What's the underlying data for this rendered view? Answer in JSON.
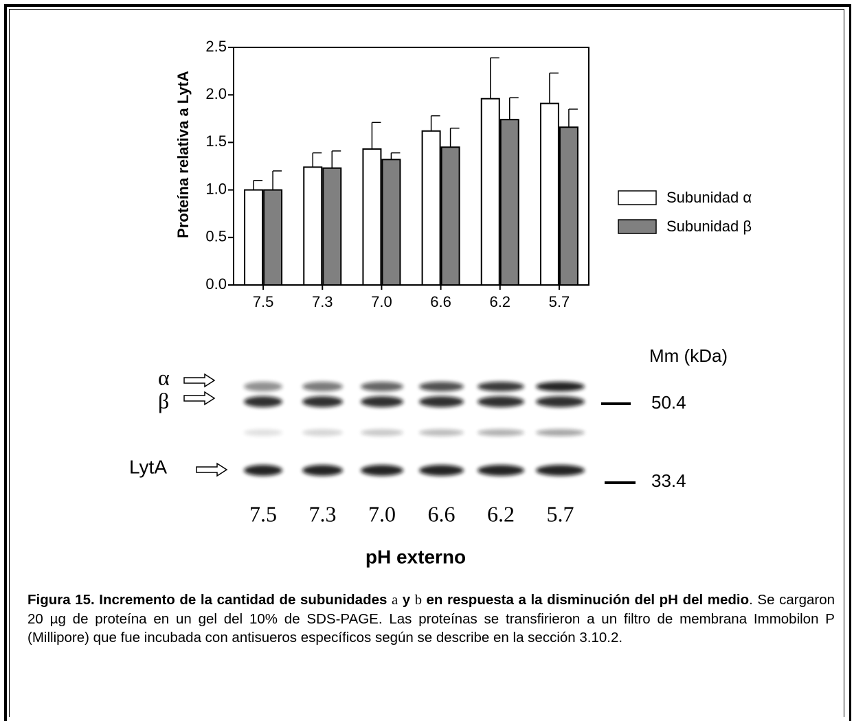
{
  "chart_data": {
    "type": "bar",
    "y_label": "Proteína relativa a LytA",
    "categories": [
      "7.5",
      "7.3",
      "7.0",
      "6.6",
      "6.2",
      "5.7"
    ],
    "series": [
      {
        "name": "Subunidad α",
        "color": "#ffffff",
        "values": [
          1.0,
          1.24,
          1.43,
          1.62,
          1.96,
          1.91
        ],
        "errors": [
          0.1,
          0.15,
          0.28,
          0.16,
          0.43,
          0.32
        ]
      },
      {
        "name": "Subunidad β",
        "color": "#808080",
        "values": [
          1.0,
          1.23,
          1.32,
          1.45,
          1.74,
          1.66
        ],
        "errors": [
          0.2,
          0.18,
          0.07,
          0.2,
          0.23,
          0.19
        ]
      }
    ],
    "ylim": [
      0,
      2.5
    ],
    "yticks": [
      {
        "value": 0,
        "label": "0.0"
      },
      0.5,
      {
        "value": 1,
        "label": "1.0"
      },
      1.5,
      {
        "value": 2,
        "label": "2.0"
      },
      2.5
    ],
    "legend": "right",
    "grid": false
  },
  "blot": {
    "alpha_label": "α",
    "beta_label": "β",
    "lyta_label": "LytA",
    "mass_title": "Mm (kDa)",
    "markers": [
      "50.4",
      "33.4"
    ],
    "lanes": [
      "7.5",
      "7.3",
      "7.0",
      "6.6",
      "6.2",
      "5.7"
    ],
    "x_label": "pH externo"
  },
  "caption": {
    "title_a": "Figura 15. Incremento de la cantidad de subunidades ",
    "sym_a": "a",
    "title_b": " y ",
    "sym_b": "b",
    "title_c": " en respuesta a la disminución del pH del medio",
    "body": ". Se cargaron 20 µg de proteína en un gel del 10% de SDS-PAGE. Las proteínas se transfirieron a un filtro de membrana Immobilon P (Millipore) que fue incubada con antisueros específicos según se describe en la sección 3.10.2."
  }
}
